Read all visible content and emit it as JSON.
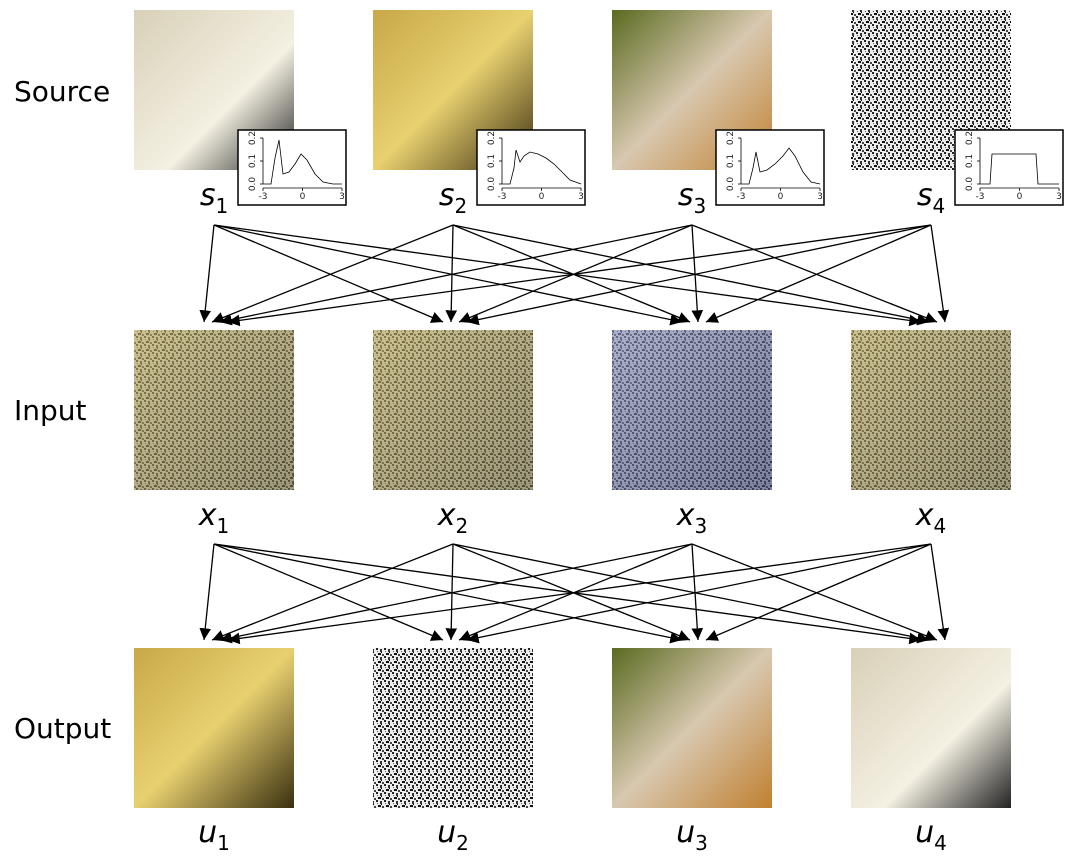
{
  "rows": [
    {
      "label": "Source",
      "items": [
        {
          "symbol": "s",
          "subscript": "1"
        },
        {
          "symbol": "s",
          "subscript": "2"
        },
        {
          "symbol": "s",
          "subscript": "3"
        },
        {
          "symbol": "s",
          "subscript": "4"
        }
      ]
    },
    {
      "label": "Input",
      "items": [
        {
          "symbol": "x",
          "subscript": "1"
        },
        {
          "symbol": "x",
          "subscript": "2"
        },
        {
          "symbol": "x",
          "subscript": "3"
        },
        {
          "symbol": "x",
          "subscript": "4"
        }
      ]
    },
    {
      "label": "Output",
      "items": [
        {
          "symbol": "u",
          "subscript": "1"
        },
        {
          "symbol": "u",
          "subscript": "2"
        },
        {
          "symbol": "u",
          "subscript": "3"
        },
        {
          "symbol": "u",
          "subscript": "4"
        }
      ]
    }
  ],
  "histogram": {
    "yticks": [
      "0.2",
      "0.1",
      "0.0"
    ],
    "xticks": [
      "-3",
      "0",
      "3"
    ]
  }
}
